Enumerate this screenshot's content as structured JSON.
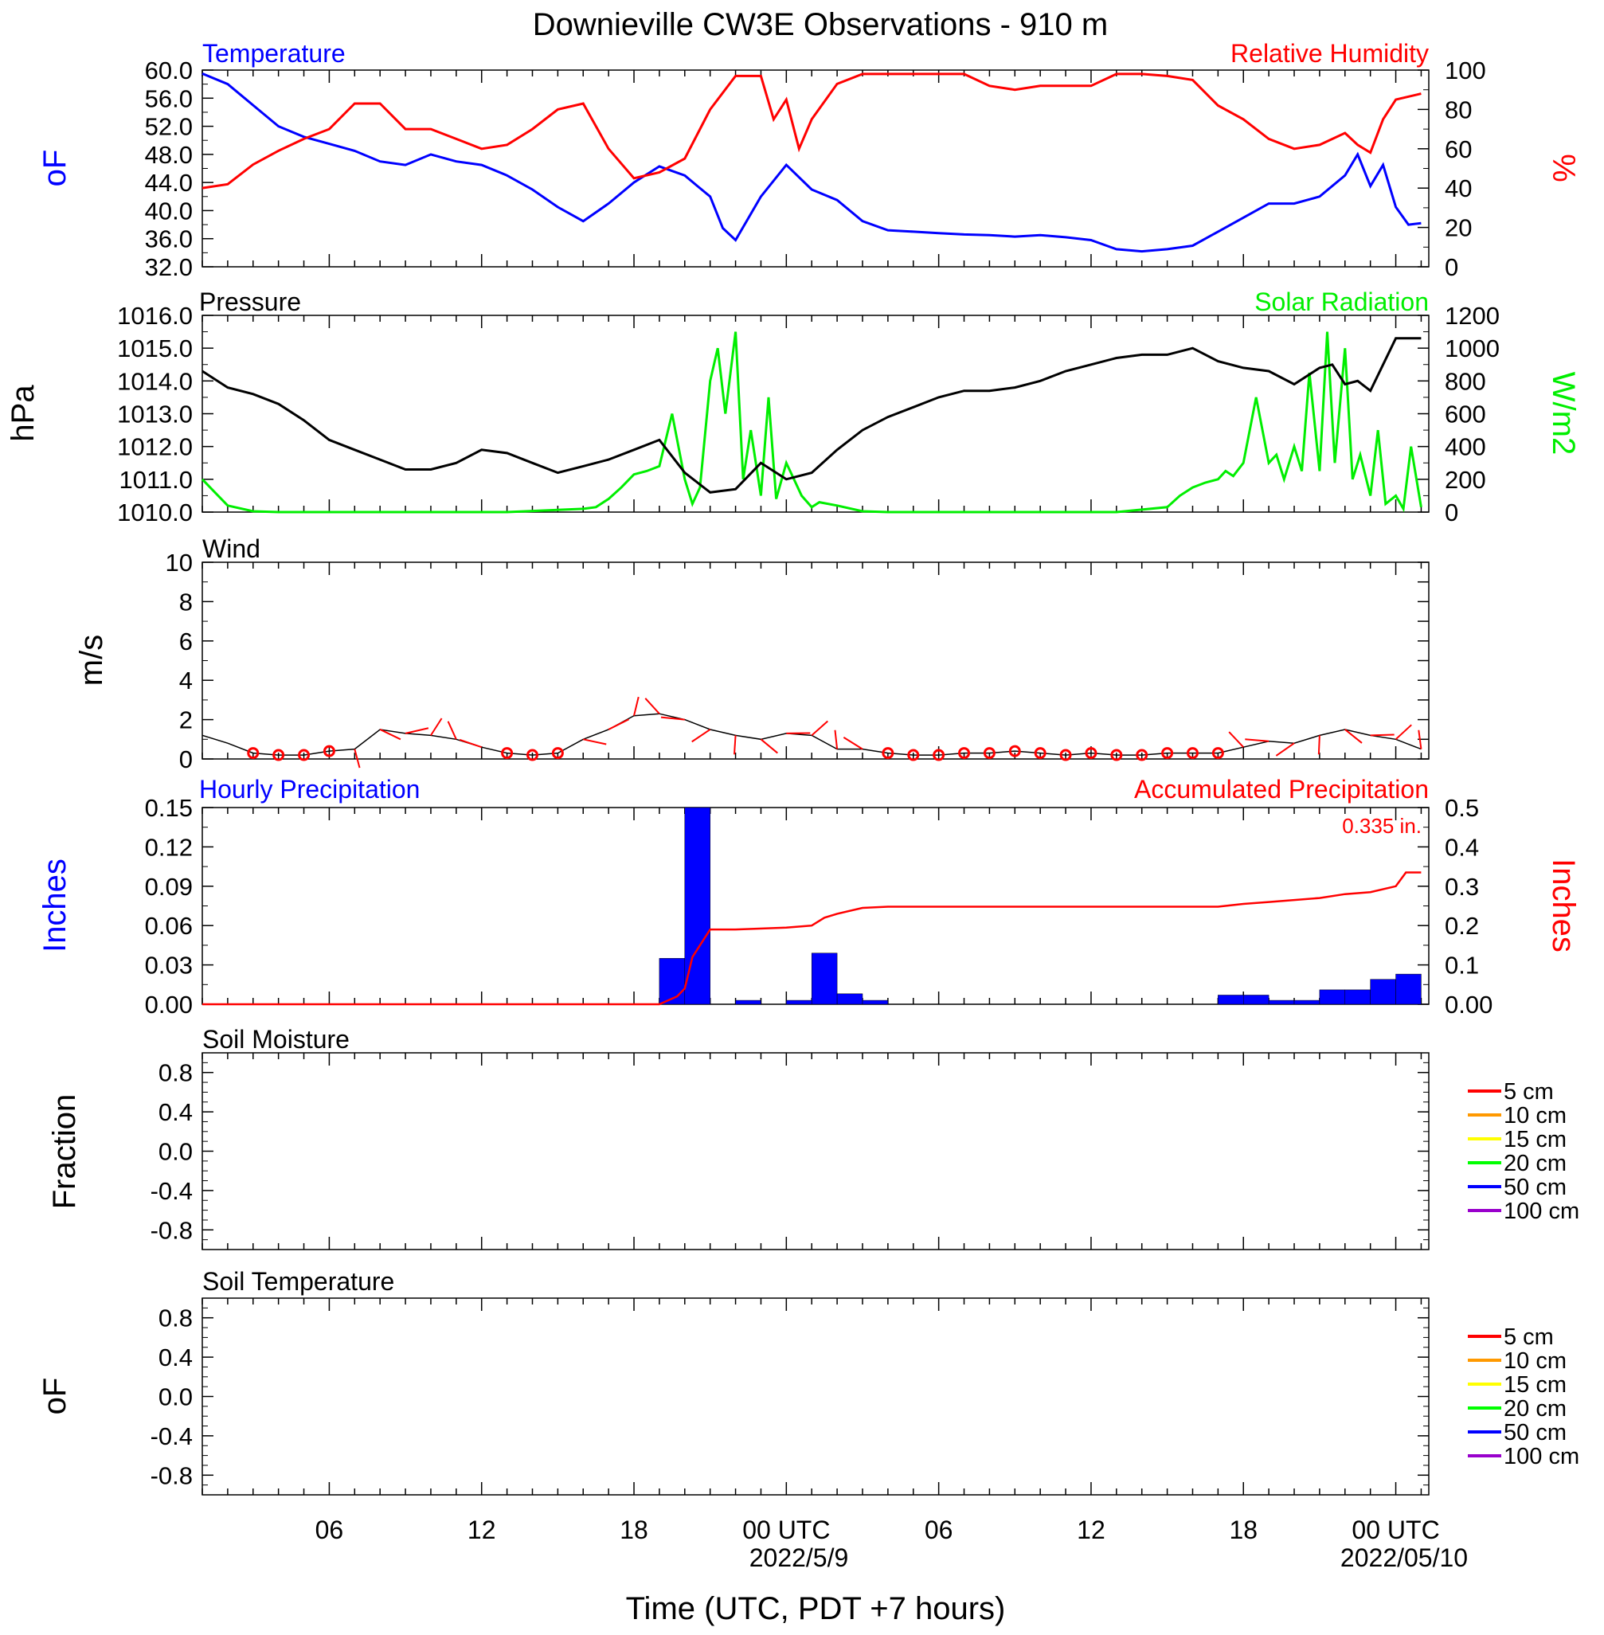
{
  "title": "Downieville CW3E Observations - 910 m",
  "x_axis": {
    "label": "Time (UTC, PDT +7 hours)",
    "ticks": [
      "06",
      "12",
      "18",
      "00 UTC",
      "06",
      "12",
      "18",
      "00 UTC"
    ],
    "dates": [
      "2022/5/9",
      "2022/05/10"
    ]
  },
  "colors": {
    "temperature": "#0000ff",
    "humidity": "#ff0000",
    "pressure": "#000000",
    "solar": "#00ee00",
    "wind": "#000000",
    "wind_barb": "#ff0000",
    "hourly_precip": "#0000ff",
    "accum_precip": "#ff0000",
    "legend": [
      "#ff0000",
      "#ff9900",
      "#ffff00",
      "#00ff00",
      "#0000ff",
      "#9900cc"
    ]
  },
  "panels": {
    "temp": {
      "left_title": "Temperature",
      "right_title": "Relative Humidity",
      "left_unit": "oF",
      "right_unit": "%",
      "left_ticks": [
        "60.0",
        "56.0",
        "52.0",
        "48.0",
        "44.0",
        "40.0",
        "36.0",
        "32.0"
      ],
      "right_ticks": [
        "100",
        "80",
        "60",
        "40",
        "20",
        "0"
      ]
    },
    "pressure": {
      "left_title": "Pressure",
      "right_title": "Solar Radiation",
      "left_unit": "hPa",
      "right_unit": "W/m2",
      "left_ticks": [
        "1016.0",
        "1015.0",
        "1014.0",
        "1013.0",
        "1012.0",
        "1011.0",
        "1010.0"
      ],
      "right_ticks": [
        "1200",
        "1000",
        "800",
        "600",
        "400",
        "200",
        "0"
      ]
    },
    "wind": {
      "left_title": "Wind",
      "left_unit": "m/s",
      "left_ticks": [
        "10",
        "8",
        "6",
        "4",
        "2",
        "0"
      ]
    },
    "precip": {
      "left_title": "Hourly Precipitation",
      "right_title": "Accumulated Precipitation",
      "left_unit": "Inches",
      "right_unit": "Inches",
      "total_label": "0.335 in.",
      "left_ticks": [
        "0.15",
        "0.12",
        "0.09",
        "0.06",
        "0.03",
        "0.00"
      ],
      "right_ticks": [
        "0.5",
        "0.4",
        "0.3",
        "0.2",
        "0.1",
        "0.00"
      ]
    },
    "soil_moisture": {
      "left_title": "Soil Moisture",
      "left_unit": "Fraction",
      "left_ticks": [
        "0.8",
        "0.4",
        "0.0",
        "-0.4",
        "-0.8"
      ],
      "legend": [
        "5 cm",
        "10 cm",
        "15 cm",
        "20 cm",
        "50 cm",
        "100 cm"
      ]
    },
    "soil_temp": {
      "left_title": "Soil Temperature",
      "left_unit": "oF",
      "left_ticks": [
        "0.8",
        "0.4",
        "0.0",
        "-0.4",
        "-0.8"
      ],
      "legend": [
        "5 cm",
        "10 cm",
        "15 cm",
        "20 cm",
        "50 cm",
        "100 cm"
      ]
    }
  },
  "chart_data": [
    {
      "type": "line",
      "title": "Temperature / Relative Humidity",
      "x_unit": "hours since 2022-05-08 01 UTC",
      "series": [
        {
          "name": "Temperature",
          "axis": "left",
          "unit": "°F",
          "ylim": [
            32,
            60
          ],
          "x": [
            0,
            1,
            2,
            3,
            4,
            5,
            6,
            7,
            8,
            9,
            10,
            11,
            12,
            13,
            14,
            15,
            16,
            17,
            18,
            19,
            19.5,
            20,
            20.5,
            21,
            22,
            23,
            24,
            25,
            26,
            27,
            28,
            29,
            30,
            31,
            32,
            33,
            34,
            35,
            36,
            37,
            38,
            39,
            40,
            41,
            42,
            43,
            44,
            45,
            45.5,
            46,
            46.5,
            47,
            47.5,
            48
          ],
          "y": [
            59.5,
            58,
            55,
            52,
            50.5,
            49.5,
            48.5,
            47,
            46.5,
            48,
            47,
            46.5,
            45,
            43,
            40.5,
            38.5,
            41,
            44,
            46.3,
            45,
            43.5,
            42,
            37.5,
            35.8,
            42,
            46.5,
            43,
            41.5,
            38.5,
            37.2,
            37,
            36.8,
            36.6,
            36.5,
            36.3,
            36.5,
            36.2,
            35.8,
            34.5,
            34.2,
            34.5,
            35,
            37,
            39,
            41,
            41,
            42,
            45,
            48,
            43.5,
            46.5,
            40.5,
            38,
            38.2
          ]
        },
        {
          "name": "Relative Humidity",
          "axis": "right",
          "unit": "%",
          "ylim": [
            0,
            100
          ],
          "x": [
            0,
            1,
            2,
            3,
            4,
            5,
            6,
            7,
            8,
            9,
            10,
            11,
            12,
            13,
            14,
            15,
            16,
            17,
            18,
            19,
            20,
            21,
            22,
            22.5,
            23,
            23.5,
            24,
            25,
            26,
            27,
            28,
            29,
            30,
            31,
            32,
            33,
            34,
            35,
            36,
            37,
            38,
            39,
            40,
            41,
            42,
            43,
            44,
            45,
            45.5,
            46,
            46.5,
            47,
            48
          ],
          "y": [
            40,
            42,
            52,
            59,
            65,
            70,
            83,
            83,
            70,
            70,
            65,
            60,
            62,
            70,
            80,
            83,
            60,
            45,
            48,
            55,
            80,
            97,
            97,
            75,
            85,
            60,
            75,
            93,
            98,
            98,
            98,
            98,
            98,
            92,
            90,
            92,
            92,
            92,
            98,
            98,
            97,
            95,
            82,
            75,
            65,
            60,
            62,
            68,
            62,
            58,
            75,
            85,
            88
          ]
        }
      ]
    },
    {
      "type": "line",
      "title": "Pressure / Solar Radiation",
      "x_unit": "hours since 2022-05-08 01 UTC",
      "series": [
        {
          "name": "Pressure",
          "axis": "left",
          "unit": "hPa",
          "ylim": [
            1010,
            1016
          ],
          "x": [
            0,
            1,
            2,
            3,
            4,
            5,
            6,
            7,
            8,
            9,
            10,
            11,
            12,
            13,
            14,
            15,
            16,
            17,
            18,
            19,
            20,
            21,
            22,
            23,
            24,
            25,
            26,
            27,
            28,
            29,
            30,
            31,
            32,
            33,
            34,
            35,
            36,
            37,
            38,
            39,
            40,
            41,
            42,
            43,
            44,
            44.5,
            45,
            45.5,
            46,
            46.5,
            47,
            48
          ],
          "y": [
            1014.3,
            1013.8,
            1013.6,
            1013.3,
            1012.8,
            1012.2,
            1011.9,
            1011.6,
            1011.3,
            1011.3,
            1011.5,
            1011.9,
            1011.8,
            1011.5,
            1011.2,
            1011.4,
            1011.6,
            1011.9,
            1012.2,
            1011.2,
            1010.6,
            1010.7,
            1011.5,
            1011.0,
            1011.2,
            1011.9,
            1012.5,
            1012.9,
            1013.2,
            1013.5,
            1013.7,
            1013.7,
            1013.8,
            1014.0,
            1014.3,
            1014.5,
            1014.7,
            1014.8,
            1014.8,
            1015.0,
            1014.6,
            1014.4,
            1014.3,
            1013.9,
            1014.4,
            1014.5,
            1013.9,
            1014.0,
            1013.7,
            1014.5,
            1015.3,
            1015.3
          ]
        },
        {
          "name": "Solar Radiation",
          "axis": "right",
          "unit": "W/m²",
          "ylim": [
            0,
            1200
          ],
          "x": [
            0,
            0.5,
            1,
            2,
            3,
            6,
            12,
            15,
            15.5,
            16,
            16.5,
            17,
            17.5,
            18,
            18.5,
            19,
            19.3,
            19.6,
            20,
            20.3,
            20.6,
            21,
            21.3,
            21.6,
            22,
            22.3,
            22.6,
            23,
            23.3,
            23.6,
            24,
            24.3,
            25,
            26,
            27,
            30,
            36,
            38,
            38.5,
            39,
            39.5,
            40,
            40.3,
            40.6,
            41,
            41.5,
            42,
            42.3,
            42.6,
            43,
            43.3,
            43.6,
            44,
            44.3,
            44.6,
            45,
            45.3,
            45.6,
            46,
            46.3,
            46.6,
            47,
            47.3,
            47.6,
            48
          ],
          "y": [
            200,
            120,
            40,
            5,
            0,
            0,
            0,
            20,
            30,
            80,
            150,
            230,
            250,
            280,
            600,
            200,
            50,
            150,
            800,
            1000,
            600,
            1100,
            200,
            500,
            100,
            700,
            80,
            300,
            200,
            100,
            30,
            60,
            40,
            5,
            0,
            0,
            0,
            30,
            100,
            150,
            180,
            200,
            250,
            220,
            300,
            700,
            300,
            350,
            200,
            400,
            250,
            850,
            250,
            1100,
            300,
            1000,
            200,
            350,
            100,
            500,
            50,
            100,
            20,
            400,
            30
          ]
        }
      ]
    },
    {
      "type": "line",
      "title": "Wind",
      "x_unit": "hours since 2022-05-08 01 UTC",
      "series": [
        {
          "name": "Wind speed",
          "unit": "m/s",
          "ylim": [
            0,
            10
          ],
          "x": [
            0,
            1,
            2,
            3,
            4,
            5,
            6,
            7,
            8,
            9,
            10,
            11,
            12,
            13,
            14,
            15,
            16,
            17,
            18,
            19,
            20,
            21,
            22,
            23,
            24,
            25,
            26,
            27,
            28,
            29,
            30,
            31,
            32,
            33,
            34,
            35,
            36,
            37,
            38,
            39,
            40,
            41,
            42,
            43,
            44,
            45,
            46,
            47,
            48
          ],
          "y": [
            1.2,
            0.8,
            0.3,
            0.2,
            0.2,
            0.4,
            0.5,
            1.5,
            1.3,
            1.2,
            1.0,
            0.6,
            0.3,
            0.2,
            0.3,
            1.0,
            1.5,
            2.2,
            2.3,
            2.0,
            1.5,
            1.2,
            1.0,
            1.3,
            1.2,
            0.5,
            0.5,
            0.3,
            0.2,
            0.2,
            0.3,
            0.3,
            0.4,
            0.3,
            0.2,
            0.3,
            0.2,
            0.2,
            0.3,
            0.3,
            0.3,
            0.6,
            0.9,
            0.8,
            1.2,
            1.5,
            1.2,
            1.0,
            0.5
          ]
        }
      ]
    },
    {
      "type": "bar",
      "title": "Hourly Precipitation / Accumulated Precipitation",
      "x_unit": "hours since 2022-05-08 01 UTC",
      "series": [
        {
          "name": "Hourly Precipitation",
          "axis": "left",
          "unit": "Inches",
          "ylim": [
            0,
            0.15
          ],
          "x": [
            18,
            19,
            21,
            23,
            24,
            25,
            26,
            40,
            41,
            42,
            43,
            44,
            45,
            46,
            47
          ],
          "y": [
            0.035,
            0.15,
            0.003,
            0.003,
            0.039,
            0.008,
            0.003,
            0.007,
            0.007,
            0.003,
            0.003,
            0.011,
            0.011,
            0.019,
            0.023
          ]
        },
        {
          "name": "Accumulated Precipitation",
          "axis": "right",
          "unit": "Inches",
          "ylim": [
            0,
            0.5
          ],
          "total": 0.335,
          "x": [
            0,
            18,
            18.7,
            19,
            19.3,
            20,
            21,
            23,
            24,
            24.5,
            25,
            26,
            27,
            40,
            41,
            42,
            43,
            44,
            45,
            46,
            47,
            47.4,
            48
          ],
          "y": [
            0,
            0,
            0.02,
            0.04,
            0.12,
            0.19,
            0.19,
            0.195,
            0.2,
            0.22,
            0.23,
            0.245,
            0.248,
            0.248,
            0.255,
            0.26,
            0.265,
            0.27,
            0.28,
            0.285,
            0.3,
            0.335,
            0.335
          ]
        }
      ]
    },
    {
      "type": "line",
      "title": "Soil Moisture",
      "ylim": [
        -1,
        1
      ],
      "series": []
    },
    {
      "type": "line",
      "title": "Soil Temperature",
      "ylim": [
        -1,
        1
      ],
      "series": []
    }
  ]
}
